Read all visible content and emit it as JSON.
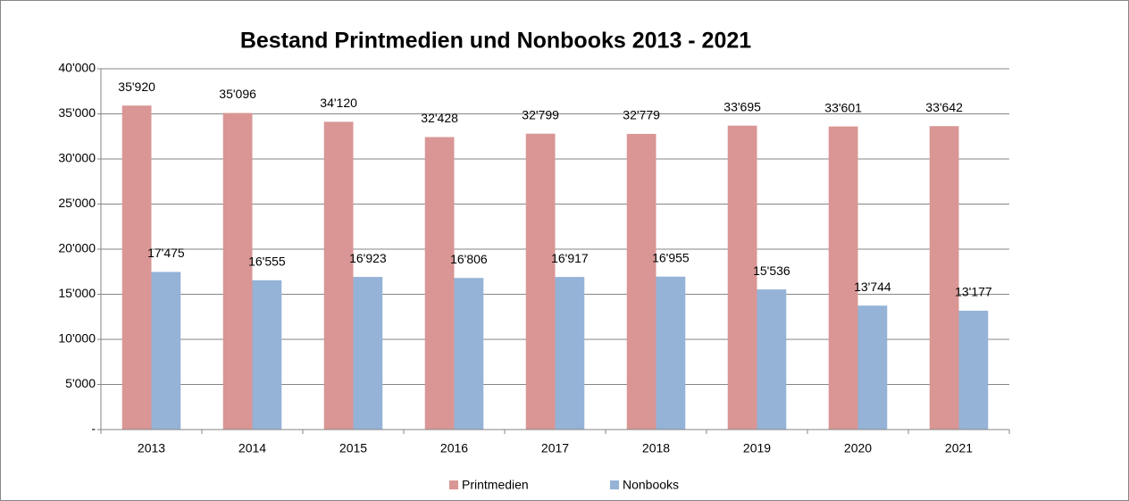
{
  "chart_data": {
    "type": "bar",
    "title": "Bestand Printmedien und Nonbooks 2013 - 2021",
    "categories": [
      "2013",
      "2014",
      "2015",
      "2016",
      "2017",
      "2018",
      "2019",
      "2020",
      "2021"
    ],
    "series": [
      {
        "name": "Printmedien",
        "color": "#d99694",
        "values": [
          35920,
          35096,
          34120,
          32428,
          32799,
          32779,
          33695,
          33601,
          33642
        ],
        "value_labels": [
          "35'920",
          "35'096",
          "34'120",
          "32'428",
          "32'799",
          "32'779",
          "33'695",
          "33'601",
          "33'642"
        ]
      },
      {
        "name": "Nonbooks",
        "color": "#95b3d7",
        "values": [
          17475,
          16555,
          16923,
          16806,
          16917,
          16955,
          15536,
          13744,
          13177
        ],
        "value_labels": [
          "17'475",
          "16'555",
          "16'923",
          "16'806",
          "16'917",
          "16'955",
          "15'536",
          "13'744",
          "13'177"
        ]
      }
    ],
    "ylim": [
      0,
      40000
    ],
    "yticks": [
      {
        "value": 0,
        "label": "-"
      },
      {
        "value": 5000,
        "label": "5'000"
      },
      {
        "value": 10000,
        "label": "10'000"
      },
      {
        "value": 15000,
        "label": "15'000"
      },
      {
        "value": 20000,
        "label": "20'000"
      },
      {
        "value": 25000,
        "label": "25'000"
      },
      {
        "value": 30000,
        "label": "30'000"
      },
      {
        "value": 35000,
        "label": "35'000"
      },
      {
        "value": 40000,
        "label": "40'000"
      }
    ],
    "grid": true,
    "legend": "bottom"
  }
}
